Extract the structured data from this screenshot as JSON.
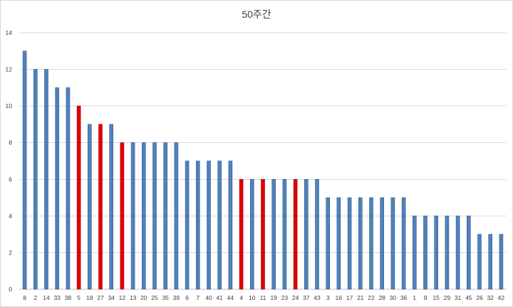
{
  "chart_data": {
    "type": "bar",
    "title": "50주간",
    "xlabel": "",
    "ylabel": "",
    "ylim": [
      0,
      14
    ],
    "yticks": [
      0,
      2,
      4,
      6,
      8,
      10,
      12,
      14
    ],
    "grid": true,
    "legend": "none",
    "categories": [
      "8",
      "2",
      "14",
      "33",
      "38",
      "5",
      "18",
      "27",
      "34",
      "12",
      "13",
      "20",
      "25",
      "35",
      "39",
      "6",
      "7",
      "40",
      "41",
      "44",
      "4",
      "10",
      "11",
      "19",
      "23",
      "24",
      "37",
      "43",
      "3",
      "16",
      "17",
      "21",
      "22",
      "28",
      "30",
      "36",
      "1",
      "9",
      "15",
      "29",
      "31",
      "45",
      "26",
      "32",
      "42"
    ],
    "values": [
      13,
      12,
      12,
      11,
      11,
      10,
      9,
      9,
      9,
      8,
      8,
      8,
      8,
      8,
      8,
      7,
      7,
      7,
      7,
      7,
      6,
      6,
      6,
      6,
      6,
      6,
      6,
      6,
      5,
      5,
      5,
      5,
      5,
      5,
      5,
      5,
      4,
      4,
      4,
      4,
      4,
      4,
      3,
      3,
      3
    ],
    "highlighted": [
      "5",
      "27",
      "12",
      "4",
      "11",
      "24"
    ],
    "colors": {
      "bar": "#4f81bd",
      "bar_edge": "#385d8a",
      "highlight": "#e00000",
      "highlight_edge": "#b00000",
      "grid": "#d9d9d9",
      "axis": "#bfbfbf",
      "text": "#404040"
    }
  }
}
